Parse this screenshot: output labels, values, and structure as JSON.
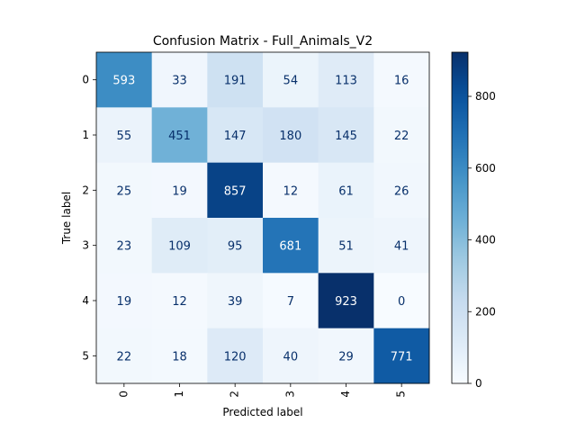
{
  "chart_data": {
    "type": "heatmap",
    "title": "Confusion Matrix - Full_Animals_V2",
    "xlabel": "Predicted label",
    "ylabel": "True label",
    "x_categories": [
      "0",
      "1",
      "2",
      "3",
      "4",
      "5"
    ],
    "y_categories": [
      "0",
      "1",
      "2",
      "3",
      "4",
      "5"
    ],
    "matrix": [
      [
        593,
        33,
        191,
        54,
        113,
        16
      ],
      [
        55,
        451,
        147,
        180,
        145,
        22
      ],
      [
        25,
        19,
        857,
        12,
        61,
        26
      ],
      [
        23,
        109,
        95,
        681,
        51,
        41
      ],
      [
        19,
        12,
        39,
        7,
        923,
        0
      ],
      [
        22,
        18,
        120,
        40,
        29,
        771
      ]
    ],
    "colormap": "Blues",
    "vmin": 0,
    "vmax": 923,
    "colorbar_ticks": [
      0,
      200,
      400,
      600,
      800
    ],
    "grid": false
  }
}
